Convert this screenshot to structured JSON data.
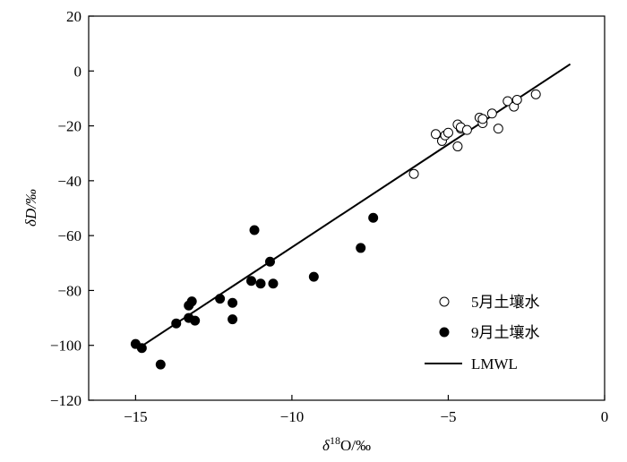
{
  "chart_data": {
    "type": "scatter",
    "title": "",
    "xlabel": {
      "prefix": "δ",
      "superscript": "18",
      "suffix": "O/‰"
    },
    "ylabel": "δD/‰",
    "xlim": [
      -16.5,
      0
    ],
    "ylim": [
      -120,
      20
    ],
    "xticks": [
      -15,
      -10,
      -5,
      0
    ],
    "yticks": [
      -120,
      -100,
      -80,
      -60,
      -40,
      -20,
      0,
      20
    ],
    "grid": false,
    "legend_position": "bottom-right",
    "series": [
      {
        "name": "5月土壤水",
        "marker": "open-circle",
        "points": [
          [
            -6.1,
            -37.5
          ],
          [
            -5.4,
            -23
          ],
          [
            -5.2,
            -25.5
          ],
          [
            -5.1,
            -23.5
          ],
          [
            -5.0,
            -22.5
          ],
          [
            -4.7,
            -19.5
          ],
          [
            -4.7,
            -27.5
          ],
          [
            -4.6,
            -21
          ],
          [
            -4.6,
            -20.5
          ],
          [
            -4.4,
            -21.5
          ],
          [
            -4.0,
            -17
          ],
          [
            -3.9,
            -19
          ],
          [
            -3.9,
            -17.5
          ],
          [
            -3.6,
            -15.5
          ],
          [
            -3.4,
            -21
          ],
          [
            -3.1,
            -11
          ],
          [
            -2.9,
            -13
          ],
          [
            -2.8,
            -10.5
          ],
          [
            -2.2,
            -8.5
          ]
        ]
      },
      {
        "name": "9月土壤水",
        "marker": "filled-circle",
        "points": [
          [
            -15.0,
            -99.5
          ],
          [
            -14.8,
            -101
          ],
          [
            -14.2,
            -107
          ],
          [
            -13.7,
            -92
          ],
          [
            -13.3,
            -85.5
          ],
          [
            -13.3,
            -90
          ],
          [
            -13.2,
            -84
          ],
          [
            -13.1,
            -91
          ],
          [
            -12.3,
            -83
          ],
          [
            -11.9,
            -84.5
          ],
          [
            -11.9,
            -90.5
          ],
          [
            -11.3,
            -76.5
          ],
          [
            -11.2,
            -58
          ],
          [
            -11.0,
            -77.5
          ],
          [
            -10.7,
            -69.5
          ],
          [
            -10.6,
            -77.5
          ],
          [
            -9.3,
            -75
          ],
          [
            -7.8,
            -64.5
          ],
          [
            -7.4,
            -53.5
          ]
        ]
      },
      {
        "name": "LMWL",
        "marker": "line",
        "points": [
          [
            -14.9,
            -101
          ],
          [
            -1.1,
            2.5
          ]
        ]
      }
    ]
  }
}
